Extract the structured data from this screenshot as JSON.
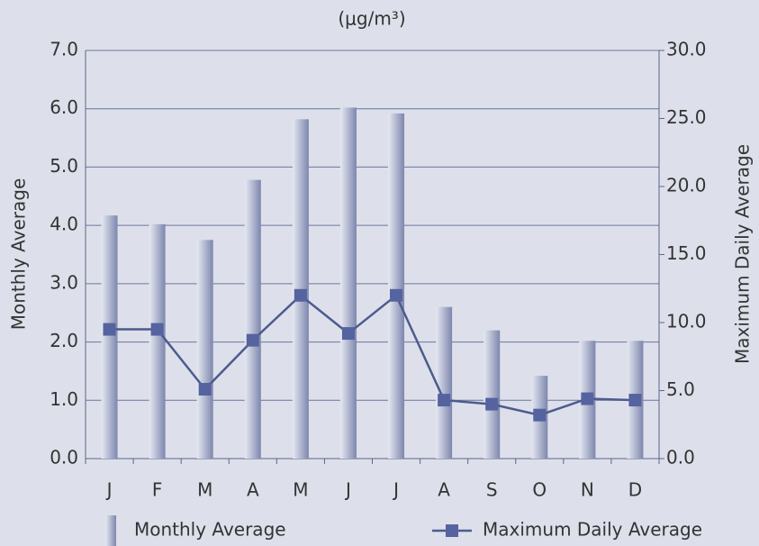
{
  "chart_data": {
    "type": "bar_line",
    "title": "(μg/m³)",
    "y_label": "Monthly Average",
    "y2_label": "Maximum Daily Average",
    "categories": [
      "J",
      "F",
      "M",
      "A",
      "M",
      "J",
      "J",
      "A",
      "S",
      "O",
      "N",
      "D"
    ],
    "series": [
      {
        "name": "Monthly Average",
        "type": "bar",
        "color": "#8a93b8",
        "values": [
          4.17,
          4.02,
          3.75,
          4.78,
          5.82,
          6.02,
          5.92,
          2.6,
          2.2,
          1.42,
          2.02,
          2.02
        ]
      },
      {
        "name": "Maximum Daily Average",
        "type": "line",
        "axis": "y2",
        "color": "#4d5b8e",
        "values": [
          9.5,
          9.5,
          5.1,
          8.7,
          12.0,
          9.2,
          12.0,
          4.3,
          4.0,
          3.2,
          4.4,
          4.3
        ]
      }
    ],
    "ylim": [
      0,
      7
    ],
    "yticks": [
      {
        "value": 0,
        "label": "0.0"
      },
      {
        "value": 1,
        "label": "1.0"
      },
      {
        "value": 2,
        "label": "2.0"
      },
      {
        "value": 3,
        "label": "3.0"
      },
      {
        "value": 4,
        "label": "4.0"
      },
      {
        "value": 5,
        "label": "5.0"
      },
      {
        "value": 6,
        "label": "6.0"
      },
      {
        "value": 7,
        "label": "7.0"
      }
    ],
    "y2lim": [
      0,
      30
    ],
    "y2ticks": [
      {
        "value": 0,
        "label": "0.0"
      },
      {
        "value": 5,
        "label": "5.0"
      },
      {
        "value": 10,
        "label": "10.0"
      },
      {
        "value": 15,
        "label": "15.0"
      },
      {
        "value": 20,
        "label": "20.0"
      },
      {
        "value": 25,
        "label": "25.0"
      },
      {
        "value": 30,
        "label": "30.0"
      }
    ],
    "grid": true
  }
}
